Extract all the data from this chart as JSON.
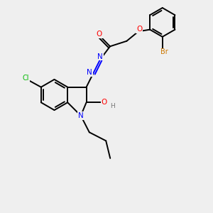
{
  "background_color": "#efefef",
  "bond_color": "#000000",
  "atom_colors": {
    "O": "#ff0000",
    "N": "#0000ff",
    "Cl": "#00bb00",
    "Br": "#cc7700",
    "H": "#777777",
    "C": "#000000"
  },
  "figsize": [
    3.0,
    3.0
  ],
  "dpi": 100
}
